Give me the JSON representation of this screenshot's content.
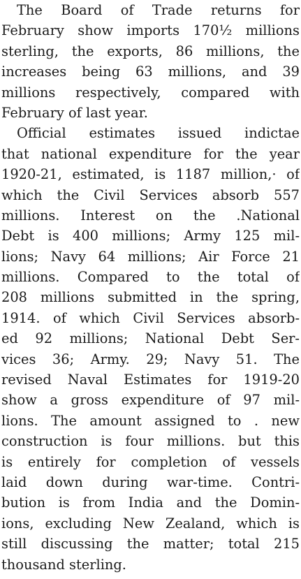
{
  "article": {
    "paragraphs": [
      {
        "lines": [
          "The Board of Trade returns for",
          "February show imports 170½ millions",
          "sterling, the exports, 86 millions, the",
          "increases being 63 millions, and 39",
          "millions respectively, compared with",
          "February of last year."
        ]
      },
      {
        "lines": [
          "Official estimates issued indictae",
          "that national expenditure for the year",
          "1920-21, estimated, is 1187 million,· of",
          "which the Civil Services absorb 557",
          "millions. Interest on the .National",
          "Debt is 400 millions; Army 125 mil-",
          "lions; Navy 64 millions; Air Force 21",
          "millions. Compared to the total of",
          "208 millions submitted in the spring,",
          "1914. of which Civil Services absorb-",
          "ed 92 millions; National Debt Ser-",
          "vices 36; Army. 29; Navy 51. The",
          "revised Naval Estimates for 1919-20",
          "show a gross expenditure of 97 mil-",
          "lions. The amount assigned to . new",
          "construction is four millions. but this",
          "is entirely for completion of vessels",
          "laid down during war-time. Contri-",
          "bution is from India and the Domin-",
          "ions, excluding New Zealand, which is",
          "still discussing the matter; total 215",
          "thousand sterling."
        ]
      }
    ]
  }
}
